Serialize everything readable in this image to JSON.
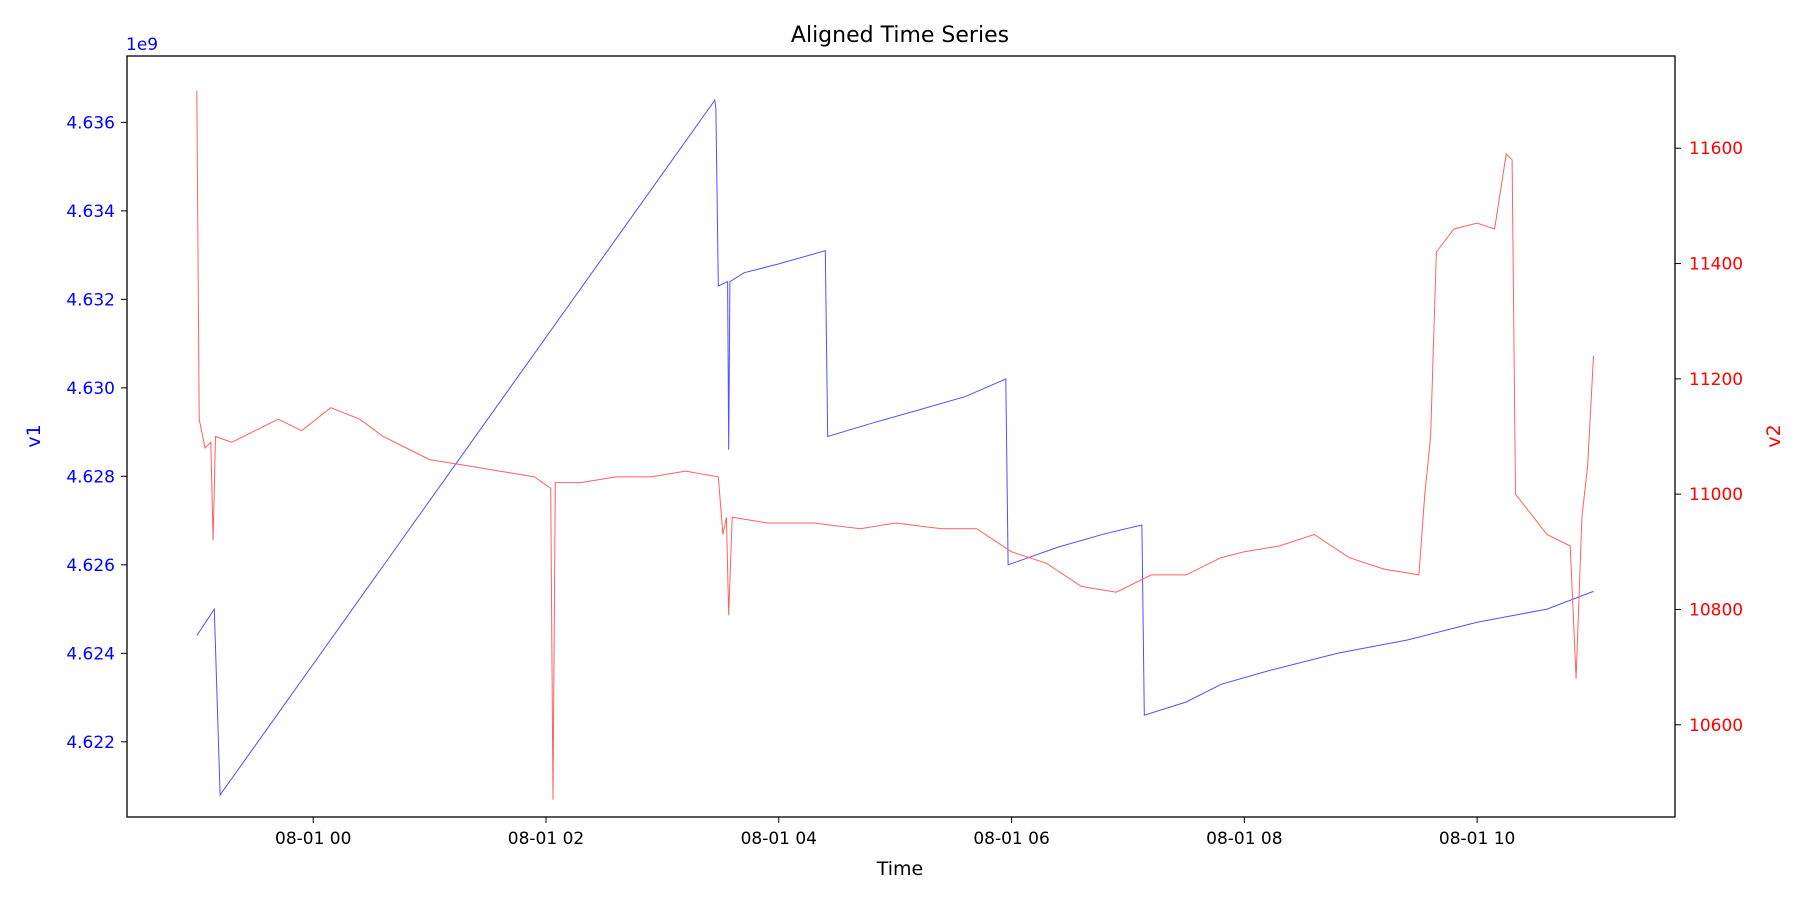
{
  "chart_data": {
    "type": "line",
    "title": "Aligned Time Series",
    "xlabel": "Time",
    "x_ticks": [
      "08-01 00",
      "08-01 02",
      "08-01 04",
      "08-01 06",
      "08-01 08",
      "08-01 10"
    ],
    "x_tick_hours": [
      0,
      2,
      4,
      6,
      8,
      10
    ],
    "xlim_hours": [
      -1.6,
      11.7
    ],
    "left_axis": {
      "label": "v1",
      "color": "#0000ff",
      "offset_label": "1e9",
      "ticks": [
        4.622,
        4.624,
        4.626,
        4.628,
        4.63,
        4.632,
        4.634,
        4.636
      ],
      "ylim": [
        4.6203,
        4.6375
      ]
    },
    "right_axis": {
      "label": "v2",
      "color": "#ff0000",
      "ticks": [
        10600,
        10800,
        11000,
        11200,
        11400,
        11600
      ],
      "ylim": [
        10440,
        11760
      ]
    },
    "series": [
      {
        "name": "v1",
        "axis": "left",
        "color": "#4f4fff",
        "points": [
          [
            -1.0,
            4.6244
          ],
          [
            -0.85,
            4.625
          ],
          [
            -0.8,
            4.6208
          ],
          [
            3.45,
            4.6365
          ],
          [
            3.46,
            4.6363
          ],
          [
            3.48,
            4.6323
          ],
          [
            3.56,
            4.6324
          ],
          [
            3.57,
            4.6286
          ],
          [
            3.58,
            4.6324
          ],
          [
            3.7,
            4.6326
          ],
          [
            4.0,
            4.6328
          ],
          [
            4.4,
            4.6331
          ],
          [
            4.42,
            4.6289
          ],
          [
            4.8,
            4.6292
          ],
          [
            5.2,
            4.6295
          ],
          [
            5.6,
            4.6298
          ],
          [
            5.95,
            4.6302
          ],
          [
            5.97,
            4.626
          ],
          [
            6.4,
            4.6264
          ],
          [
            6.8,
            4.6267
          ],
          [
            7.12,
            4.6269
          ],
          [
            7.14,
            4.6226
          ],
          [
            7.5,
            4.6229
          ],
          [
            7.8,
            4.6233
          ],
          [
            8.2,
            4.6236
          ],
          [
            8.8,
            4.624
          ],
          [
            9.4,
            4.6243
          ],
          [
            10.0,
            4.6247
          ],
          [
            10.6,
            4.625
          ],
          [
            11.0,
            4.6254
          ]
        ]
      },
      {
        "name": "v2",
        "axis": "right",
        "color": "#ff6060",
        "points": [
          [
            -1.0,
            11700
          ],
          [
            -0.98,
            11130
          ],
          [
            -0.93,
            11080
          ],
          [
            -0.88,
            11090
          ],
          [
            -0.86,
            10920
          ],
          [
            -0.84,
            11100
          ],
          [
            -0.7,
            11090
          ],
          [
            -0.5,
            11110
          ],
          [
            -0.3,
            11130
          ],
          [
            -0.1,
            11110
          ],
          [
            0.15,
            11150
          ],
          [
            0.4,
            11130
          ],
          [
            0.6,
            11100
          ],
          [
            0.8,
            11080
          ],
          [
            1.0,
            11060
          ],
          [
            1.3,
            11050
          ],
          [
            1.6,
            11040
          ],
          [
            1.9,
            11030
          ],
          [
            2.04,
            11010
          ],
          [
            2.06,
            10470
          ],
          [
            2.08,
            11020
          ],
          [
            2.3,
            11020
          ],
          [
            2.6,
            11030
          ],
          [
            2.9,
            11030
          ],
          [
            3.2,
            11040
          ],
          [
            3.48,
            11030
          ],
          [
            3.52,
            10930
          ],
          [
            3.55,
            10960
          ],
          [
            3.57,
            10790
          ],
          [
            3.6,
            10960
          ],
          [
            3.9,
            10950
          ],
          [
            4.3,
            10950
          ],
          [
            4.7,
            10940
          ],
          [
            5.0,
            10950
          ],
          [
            5.4,
            10940
          ],
          [
            5.7,
            10940
          ],
          [
            6.0,
            10900
          ],
          [
            6.3,
            10880
          ],
          [
            6.6,
            10840
          ],
          [
            6.9,
            10830
          ],
          [
            7.2,
            10860
          ],
          [
            7.5,
            10860
          ],
          [
            7.8,
            10890
          ],
          [
            8.0,
            10900
          ],
          [
            8.3,
            10910
          ],
          [
            8.6,
            10930
          ],
          [
            8.9,
            10890
          ],
          [
            9.2,
            10870
          ],
          [
            9.5,
            10860
          ],
          [
            9.55,
            11000
          ],
          [
            9.6,
            11100
          ],
          [
            9.65,
            11420
          ],
          [
            9.8,
            11460
          ],
          [
            10.0,
            11470
          ],
          [
            10.15,
            11460
          ],
          [
            10.25,
            11590
          ],
          [
            10.3,
            11580
          ],
          [
            10.33,
            11000
          ],
          [
            10.6,
            10930
          ],
          [
            10.8,
            10910
          ],
          [
            10.85,
            10680
          ],
          [
            10.9,
            10960
          ],
          [
            10.95,
            11050
          ],
          [
            11.0,
            11240
          ]
        ]
      }
    ],
    "grid": false,
    "legend": "none"
  }
}
